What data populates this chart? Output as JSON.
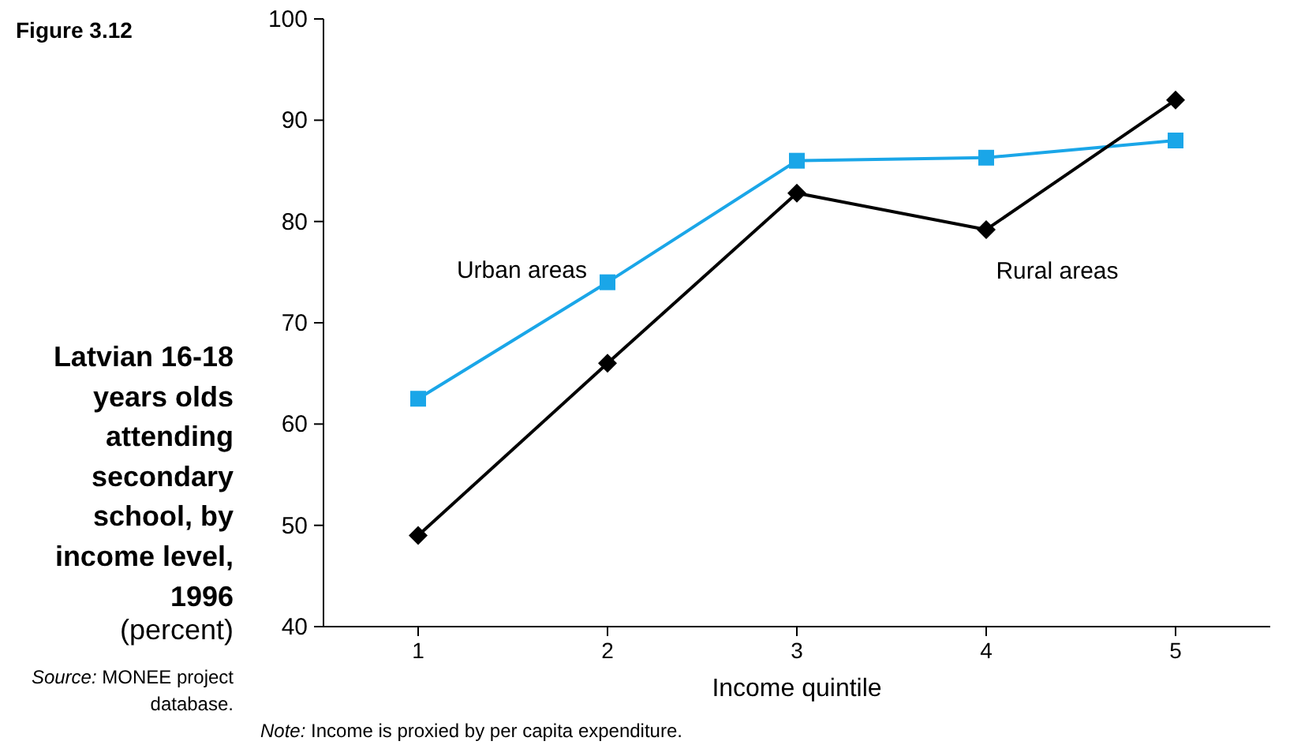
{
  "chart_data": {
    "type": "line",
    "title": "Latvian 16-18 years olds attending secondary school, by income level, 1996",
    "subtitle": "(percent)",
    "xlabel": "Income quintile",
    "annotations": [
      "Figure 3.12",
      "Source: MONEE project database.",
      "Note: Income is proxied by per capita expenditure."
    ],
    "categories": [
      "1",
      "2",
      "3",
      "4",
      "5"
    ],
    "series": [
      {
        "name": "Urban areas",
        "color": "#1aa6e8",
        "marker": "square",
        "values": [
          62.5,
          74,
          86,
          86.3,
          88
        ]
      },
      {
        "name": "Rural areas",
        "color": "#000000",
        "marker": "diamond",
        "values": [
          49,
          66,
          82.8,
          79.2,
          92
        ]
      }
    ],
    "ylim": [
      40,
      100
    ],
    "yticks": [
      40,
      50,
      60,
      70,
      80,
      90,
      100
    ],
    "grid": false,
    "line_style": "solid"
  }
}
